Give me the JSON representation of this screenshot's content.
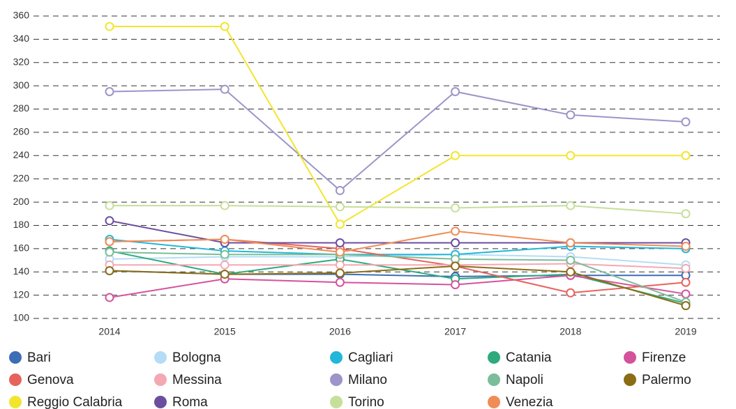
{
  "chart_data": {
    "type": "line",
    "x": [
      2014,
      2015,
      2016,
      2017,
      2018,
      2019
    ],
    "xticks": [
      2014,
      2015,
      2016,
      2017,
      2018,
      2019
    ],
    "ylim": [
      100,
      360
    ],
    "yticks": [
      100,
      120,
      140,
      160,
      180,
      200,
      220,
      240,
      260,
      280,
      300,
      320,
      340,
      360
    ],
    "grid": true,
    "series": [
      {
        "name": "Bari",
        "color": "#3d6db5",
        "values": [
          141,
          138,
          138,
          136,
          137,
          137
        ]
      },
      {
        "name": "Bologna",
        "color": "#b5dcf5",
        "values": [
          151,
          153,
          153,
          155,
          153,
          146
        ]
      },
      {
        "name": "Cagliari",
        "color": "#22b7d8",
        "values": [
          168,
          158,
          155,
          155,
          162,
          160
        ]
      },
      {
        "name": "Catania",
        "color": "#2eaa7c",
        "values": [
          158,
          138,
          151,
          134,
          138,
          113
        ]
      },
      {
        "name": "Firenze",
        "color": "#d4529c",
        "values": [
          118,
          134,
          131,
          129,
          137,
          121
        ]
      },
      {
        "name": "Genova",
        "color": "#e8625c",
        "values": [
          166,
          168,
          160,
          145,
          122,
          131
        ]
      },
      {
        "name": "Messina",
        "color": "#f4a8b4",
        "values": [
          146,
          146,
          146,
          146,
          147,
          143
        ]
      },
      {
        "name": "Milano",
        "color": "#9b95c9",
        "values": [
          295,
          297,
          210,
          295,
          275,
          269
        ]
      },
      {
        "name": "Napoli",
        "color": "#7bbd9a",
        "values": [
          157,
          155,
          155,
          151,
          150,
          114
        ]
      },
      {
        "name": "Palermo",
        "color": "#8a6d14",
        "values": [
          141,
          138,
          139,
          145,
          140,
          111
        ]
      },
      {
        "name": "Reggio Calabria",
        "color": "#f2e52e",
        "values": [
          351,
          351,
          181,
          240,
          240,
          240
        ]
      },
      {
        "name": "Roma",
        "color": "#6b4f9e",
        "values": [
          184,
          165,
          165,
          165,
          165,
          165
        ]
      },
      {
        "name": "Torino",
        "color": "#c6df9a",
        "values": [
          197,
          197,
          196,
          195,
          197,
          190
        ]
      },
      {
        "name": "Venezia",
        "color": "#f08c55",
        "values": [
          166,
          168,
          157,
          175,
          165,
          162
        ]
      }
    ]
  }
}
